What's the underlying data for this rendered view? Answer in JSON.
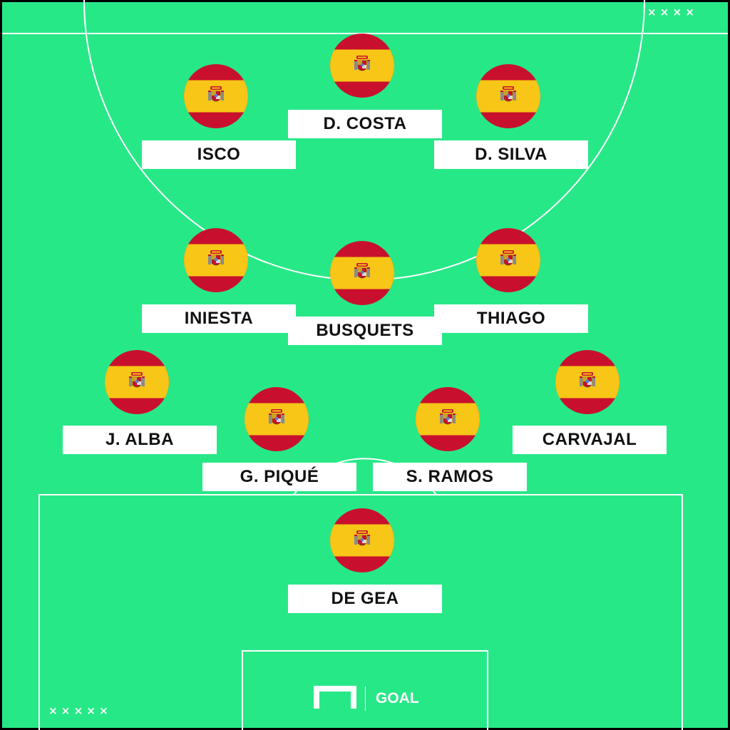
{
  "colors": {
    "pitch": "#27e887",
    "lines": "#ffffff",
    "border": "#000000",
    "flag_red": "#c8102e",
    "flag_yellow": "#f7c617",
    "plate": "#ffffff",
    "name_text": "#111111"
  },
  "formation": {
    "forwards": [
      {
        "name": "ISCO",
        "flag": "spain-flag-icon"
      },
      {
        "name": "D. COSTA",
        "flag": "spain-flag-icon"
      },
      {
        "name": "D. SILVA",
        "flag": "spain-flag-icon"
      }
    ],
    "midfielders": [
      {
        "name": "INIESTA",
        "flag": "spain-flag-icon"
      },
      {
        "name": "BUSQUETS",
        "flag": "spain-flag-icon"
      },
      {
        "name": "THIAGO",
        "flag": "spain-flag-icon"
      }
    ],
    "defenders": [
      {
        "name": "J. ALBA",
        "flag": "spain-flag-icon"
      },
      {
        "name": "G. PIQUÉ",
        "flag": "spain-flag-icon"
      },
      {
        "name": "S. RAMOS",
        "flag": "spain-flag-icon"
      },
      {
        "name": "CARVAJAL",
        "flag": "spain-flag-icon"
      }
    ],
    "goalkeeper": [
      {
        "name": "DE GEA",
        "flag": "spain-flag-icon"
      }
    ]
  },
  "decor": {
    "top_right_marks": "× × × ×",
    "bottom_left_marks": "× × × × ×"
  },
  "brand": {
    "logo_icon": "goal-logo-icon",
    "label": "GOAL"
  }
}
